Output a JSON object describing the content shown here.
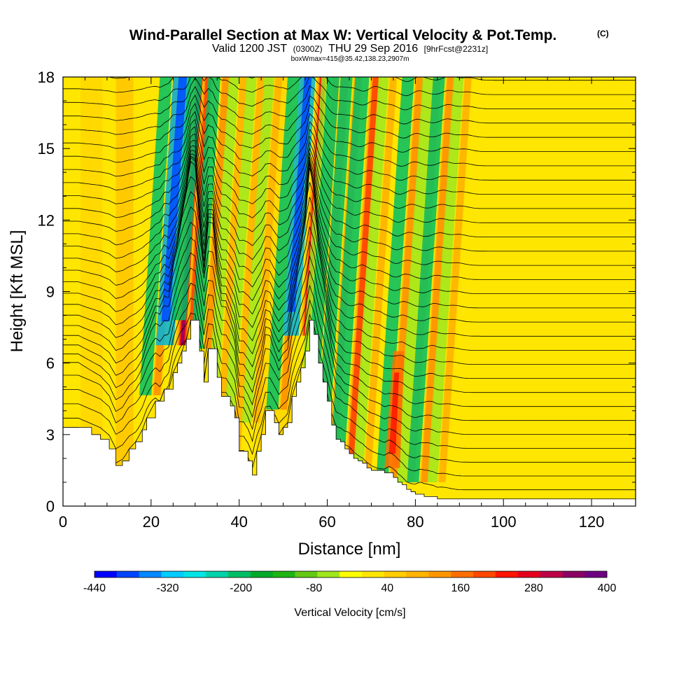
{
  "header": {
    "title": "Wind-Parallel Section at Max W: Vertical Velocity & Pot.Temp.",
    "copyright": "(C)",
    "valid_main": "Valid 1200 JST",
    "valid_utc": "(0300Z)",
    "valid_date": "THU 29 Sep 2016",
    "forecast": "[9hrFcst@2231z]",
    "box_info": "boxWmax=415@35.42,138.23,2907m"
  },
  "chart_data": {
    "type": "heatmap",
    "xlabel": "Distance [nm]",
    "ylabel": "Height [Kft MSL]",
    "xlim": [
      0,
      130
    ],
    "ylim": [
      0,
      18
    ],
    "x_ticks": [
      "0",
      "20",
      "40",
      "60",
      "80",
      "100",
      "120"
    ],
    "y_ticks": [
      "0",
      "3",
      "6",
      "9",
      "12",
      "15",
      "18"
    ],
    "terrain_profile": {
      "x": [
        0,
        3.5,
        6.5,
        8.5,
        10.5,
        12,
        13.5,
        15,
        16.5,
        18,
        19,
        21,
        22,
        23,
        24,
        25,
        26,
        27,
        28,
        29,
        30,
        31,
        32,
        33,
        34,
        35,
        36,
        37,
        38,
        39,
        40,
        41,
        42,
        43,
        44,
        45,
        46,
        47,
        48,
        49,
        50,
        51,
        52,
        53,
        54,
        55,
        56,
        57,
        58,
        59,
        60,
        61,
        62,
        63,
        64,
        65,
        66,
        67,
        68,
        69,
        70,
        71,
        72,
        73,
        74,
        75,
        76,
        77,
        78,
        79,
        80,
        81,
        82,
        84,
        85,
        130
      ],
      "height": [
        3.3,
        3.3,
        3.0,
        2.8,
        2.4,
        1.7,
        1.9,
        2.4,
        2.7,
        3.2,
        3.7,
        4.4,
        4.4,
        4.9,
        4.9,
        5.6,
        6.0,
        6.5,
        7.0,
        7.8,
        7.8,
        6.5,
        5.2,
        6.6,
        6.6,
        5.4,
        4.6,
        4.6,
        4.2,
        3.7,
        2.3,
        2.3,
        1.9,
        1.3,
        2.3,
        3.0,
        4.0,
        4.0,
        3.5,
        3.0,
        3.3,
        3.5,
        4.6,
        5.2,
        5.8,
        6.5,
        7.8,
        7.2,
        6.0,
        5.2,
        4.4,
        3.4,
        2.8,
        2.7,
        2.4,
        2.2,
        2.0,
        1.9,
        1.8,
        1.6,
        1.5,
        1.5,
        1.5,
        1.4,
        1.4,
        1.2,
        1.0,
        0.9,
        0.7,
        0.6,
        0.5,
        0.5,
        0.4,
        0.4,
        0.3,
        0.3
      ]
    },
    "updraft_bands_x_at_top": [
      26,
      31,
      33,
      37,
      41,
      45,
      49,
      55,
      59,
      62,
      64,
      67,
      71,
      75,
      81,
      85,
      88,
      92
    ],
    "contour_series": "Pot.Temp.",
    "shaded_series": "Vertical Velocity",
    "colorbar": {
      "label": "Vertical Velocity [cm/s]",
      "tick_labels": [
        "-440",
        "-320",
        "-200",
        "-80",
        "40",
        "160",
        "280",
        "400"
      ],
      "colors": [
        "#0000ff",
        "#0044ff",
        "#0088ff",
        "#00ccff",
        "#00e5e5",
        "#00d2aa",
        "#00be64",
        "#00aa28",
        "#1eb414",
        "#64c814",
        "#a0e61e",
        "#ffff00",
        "#ffe600",
        "#ffcd00",
        "#ffb400",
        "#ff9600",
        "#ff6e00",
        "#ff4600",
        "#ff1400",
        "#e6001e",
        "#be0046",
        "#8c0064",
        "#6e0082"
      ]
    }
  }
}
